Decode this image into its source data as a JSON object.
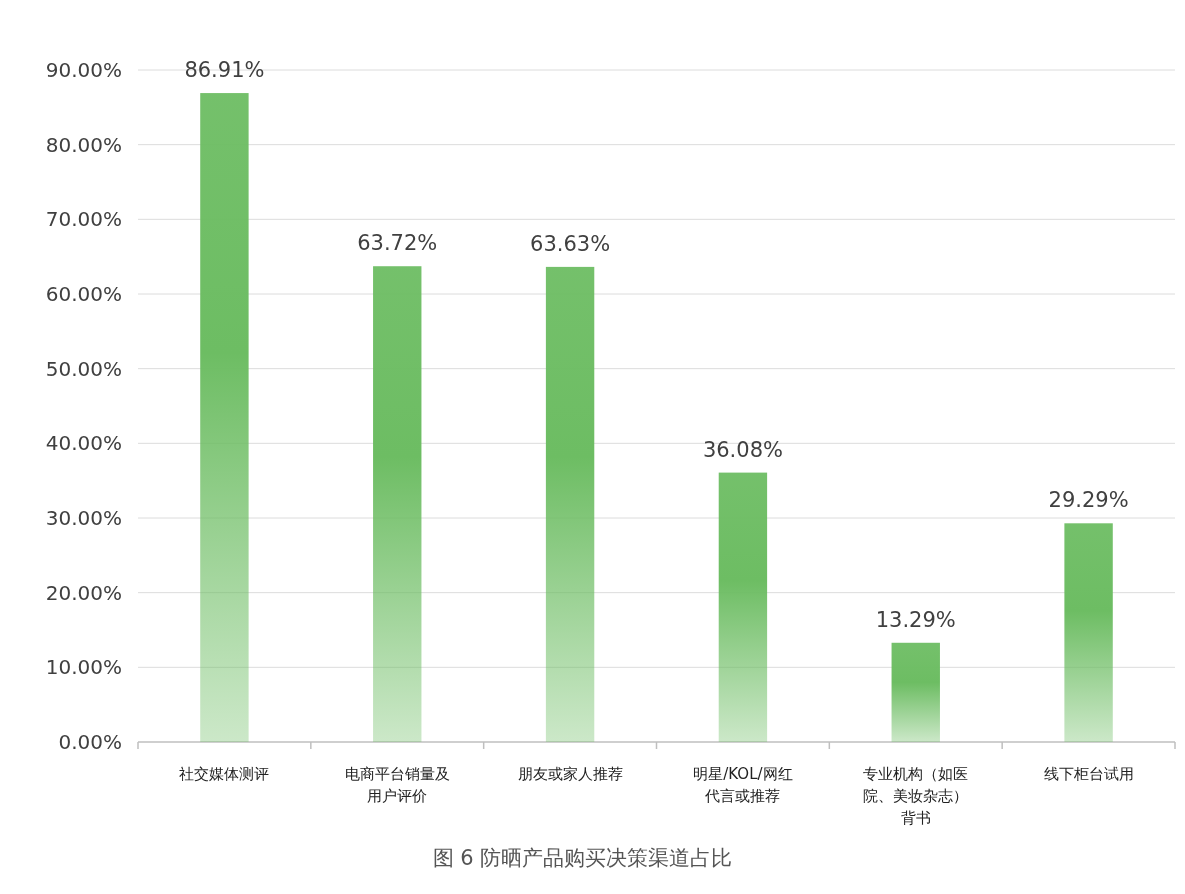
{
  "chart_data": {
    "type": "bar",
    "title": "图 6 防晒产品购买决策渠道占比",
    "categories": [
      "社交媒体测评",
      "电商平台销量及用户评价",
      "朋友或家人推荐",
      "明星/KOL/网红代言或推荐",
      "专业机构（如医院、美妆杂志）背书",
      "线下柜台试用"
    ],
    "values": [
      86.91,
      63.72,
      63.63,
      36.08,
      13.29,
      29.29
    ],
    "value_labels": [
      "86.91%",
      "63.72%",
      "63.63%",
      "36.08%",
      "13.29%",
      "29.29%"
    ],
    "color": "#6dbd63",
    "ylim": [
      0,
      90
    ],
    "yticks": [
      {
        "value": 0,
        "label": "0.00%"
      },
      {
        "value": 10,
        "label": "10.00%"
      },
      {
        "value": 20,
        "label": "20.00%"
      },
      {
        "value": 30,
        "label": "30.00%"
      },
      {
        "value": 40,
        "label": "40.00%"
      },
      {
        "value": 50,
        "label": "50.00%"
      },
      {
        "value": 60,
        "label": "60.00%"
      },
      {
        "value": 70,
        "label": "70.00%"
      },
      {
        "value": 80,
        "label": "80.00%"
      },
      {
        "value": 90,
        "label": "90.00%"
      }
    ],
    "grid": "y"
  }
}
